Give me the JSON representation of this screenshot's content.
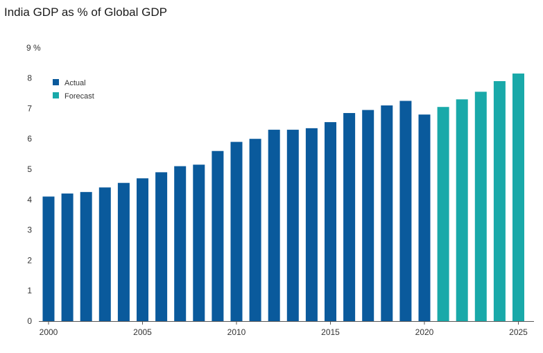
{
  "chart_data": {
    "type": "bar",
    "title": "India GDP as % of Global GDP",
    "xlabel": "",
    "ylabel": "",
    "ylim": [
      0,
      9
    ],
    "y_top_label": "9 %",
    "y_ticks": [
      "0",
      "1",
      "2",
      "3",
      "4",
      "5",
      "6",
      "7",
      "8"
    ],
    "x_ticks": [
      "2000",
      "2005",
      "2010",
      "2015",
      "2020",
      "2025"
    ],
    "grid": false,
    "legend_position": "top-left",
    "series": [
      {
        "name": "Actual",
        "color": "#0a5a9c",
        "x": [
          2000,
          2001,
          2002,
          2003,
          2004,
          2005,
          2006,
          2007,
          2008,
          2009,
          2010,
          2011,
          2012,
          2013,
          2014,
          2015,
          2016,
          2017,
          2018,
          2019,
          2020
        ],
        "values": [
          4.1,
          4.2,
          4.25,
          4.4,
          4.55,
          4.7,
          4.9,
          5.1,
          5.15,
          5.6,
          5.9,
          6.0,
          6.3,
          6.3,
          6.35,
          6.55,
          6.85,
          6.95,
          7.1,
          7.25,
          6.8
        ]
      },
      {
        "name": "Forecast",
        "color": "#19a9a9",
        "x": [
          2021,
          2022,
          2023,
          2024,
          2025
        ],
        "values": [
          7.05,
          7.3,
          7.55,
          7.9,
          8.15
        ]
      }
    ]
  }
}
